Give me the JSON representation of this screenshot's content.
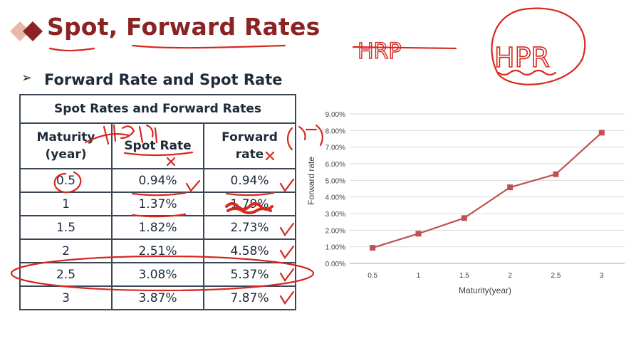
{
  "slide": {
    "title": "Spot, Forward Rates",
    "subtitle": "Forward Rate and Spot Rate",
    "bullet": "➢"
  },
  "table": {
    "caption": "Spot Rates and Forward Rates",
    "headers": [
      "Maturity\n(year)",
      "Spot Rate",
      "Forward\nrate"
    ],
    "rows": [
      [
        "0.5",
        "0.94%",
        "0.94%"
      ],
      [
        "1",
        "1.37%",
        "1.79%"
      ],
      [
        "1.5",
        "1.82%",
        "2.73%"
      ],
      [
        "2",
        "2.51%",
        "4.58%"
      ],
      [
        "2.5",
        "3.08%",
        "5.37%"
      ],
      [
        "3",
        "3.87%",
        "7.87%"
      ]
    ]
  },
  "annotations": {
    "handwritten_hrp": "HRP",
    "handwritten_hpr": "HPR"
  },
  "chart_data": {
    "type": "line",
    "title": "",
    "xlabel": "Maturity(year)",
    "ylabel": "Forward rate",
    "categories": [
      "0.5",
      "1",
      "1.5",
      "2",
      "2.5",
      "3"
    ],
    "series": [
      {
        "values": [
          0.94,
          1.79,
          2.73,
          4.58,
          5.37,
          7.87
        ]
      }
    ],
    "ylim": [
      0,
      9
    ],
    "yticks": [
      "0.00%",
      "1.00%",
      "2.00%",
      "3.00%",
      "4.00%",
      "5.00%",
      "6.00%",
      "7.00%",
      "8.00%",
      "9.00%"
    ],
    "grid": true,
    "legend": "none",
    "color": "#c0504d"
  },
  "colors": {
    "title": "#8b2323",
    "ink": "#d6281f",
    "line": "#c0504d",
    "grid": "#d9d9d9"
  }
}
